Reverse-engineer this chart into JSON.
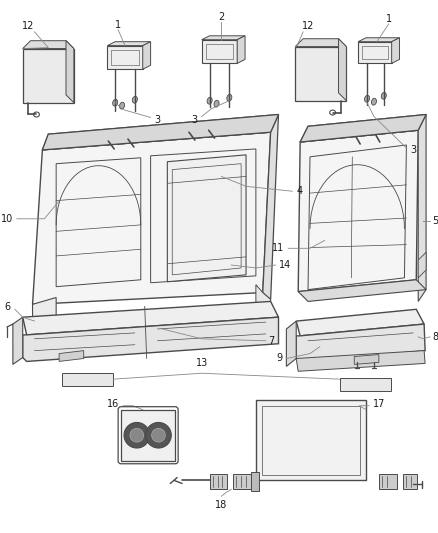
{
  "background_color": "#ffffff",
  "line_color": "#4a4a4a",
  "label_color": "#1a1a1a",
  "callout_color": "#888888",
  "figsize": [
    4.38,
    5.33
  ],
  "dpi": 100,
  "label_fontsize": 7.0
}
